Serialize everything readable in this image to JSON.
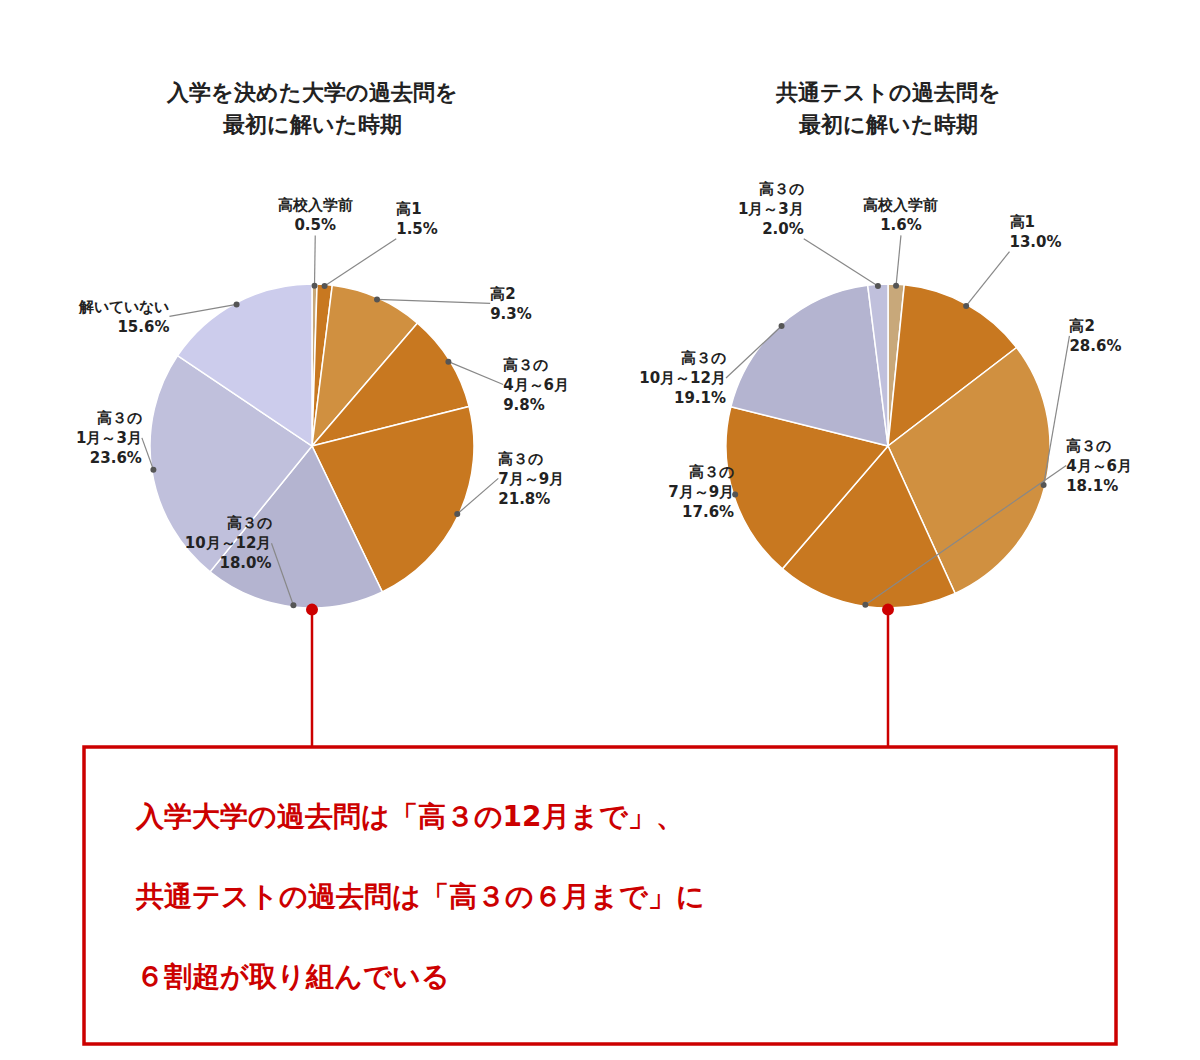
{
  "chart_data": [
    {
      "type": "pie",
      "title": "入学を決めた大学の過去問を\n最初に解いた時期",
      "categories": [
        "高校入学前",
        "高1",
        "高2",
        "高３の\n4月～6月",
        "高３の\n7月～9月",
        "高３の\n10月～12月",
        "高３の\n1月～3月",
        "解いていない"
      ],
      "values": [
        0.5,
        1.5,
        9.3,
        9.8,
        21.8,
        18.0,
        23.6,
        15.6
      ],
      "value_labels": [
        "0.5%",
        "1.5%",
        "9.3%",
        "9.8%",
        "21.8%",
        "18.0%",
        "23.6%",
        "15.6%"
      ],
      "colors": [
        "#C8A87A",
        "#C87820",
        "#D09040",
        "#C87820",
        "#C87820",
        "#B4B4D0",
        "#C0C0DC",
        "#CCCCEC"
      ],
      "data_labels": true
    },
    {
      "type": "pie",
      "title": "共通テストの過去問を\n最初に解いた時期",
      "categories": [
        "高校入学前",
        "高1",
        "高2",
        "高３の\n4月～6月",
        "高３の\n7月～9月",
        "高３の\n10月～12月",
        "高３の\n1月～3月"
      ],
      "values": [
        1.6,
        13.0,
        28.6,
        18.1,
        17.6,
        19.1,
        2.0
      ],
      "value_labels": [
        "1.6%",
        "13.0%",
        "28.6%",
        "18.1%",
        "17.6%",
        "19.1%",
        "2.0%"
      ],
      "colors": [
        "#C8A87A",
        "#C87820",
        "#D09040",
        "#C87820",
        "#C87820",
        "#B4B4D0",
        "#C0C0DC"
      ],
      "data_labels": true
    }
  ],
  "annotations": [
    {
      "text": "入学大学の過去問は「高３の12月まで」、\n共通テストの過去問は「高３の６月まで」に\n６割超が取り組んでいる",
      "color": "#CC0000"
    }
  ]
}
